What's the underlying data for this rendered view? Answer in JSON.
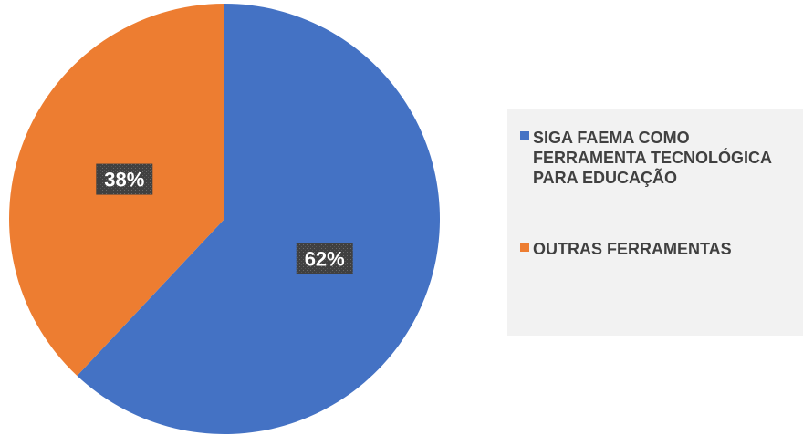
{
  "chart_data": {
    "type": "pie",
    "title": "",
    "slices": [
      {
        "name": "SIGA FAEMA COMO FERRAMENTA TECNOLÓGICA PARA EDUCAÇÃO",
        "value": 62,
        "label": "62%",
        "color": "#4472c4"
      },
      {
        "name": "OUTRAS FERRAMENTAS",
        "value": 38,
        "label": "38%",
        "color": "#ed7d31"
      }
    ],
    "legend_position": "right",
    "data_label_background": "#404040"
  }
}
